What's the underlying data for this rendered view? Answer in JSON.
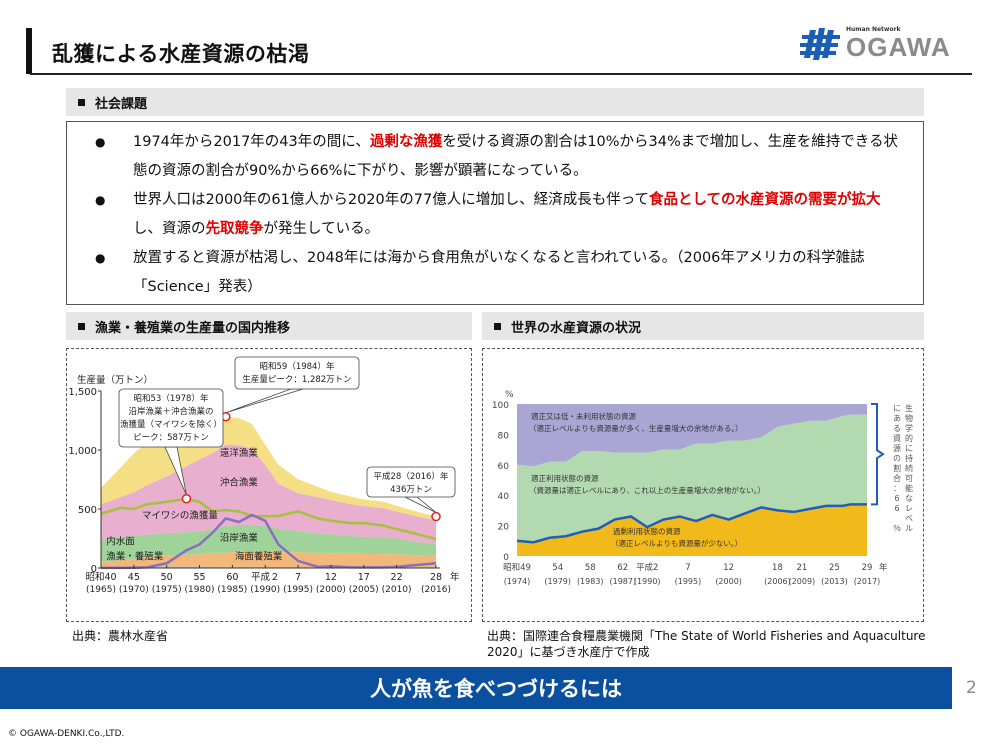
{
  "header": {
    "title": "乱獲による水産資源の枯渇",
    "logo_tagline": "Human Network",
    "logo_name": "OGAWA"
  },
  "social_issues": {
    "heading": "社会課題",
    "bullets": [
      {
        "parts": [
          {
            "text": "1974年から2017年の43年の間に、",
            "emphasis": false
          },
          {
            "text": "過剰な漁獲",
            "emphasis": true
          },
          {
            "text": "を受ける資源の割合は10%から34%まで増加し、生産を維持できる状態の資源の割合が90%から66%に下がり、影響が顕著になっている。",
            "emphasis": false
          }
        ]
      },
      {
        "parts": [
          {
            "text": "世界人口は2000年の61億人から2020年の77億人に増加し、経済成長も伴って",
            "emphasis": false
          },
          {
            "text": "食品としての水産資源の需要が拡大",
            "emphasis": true
          },
          {
            "text": "し、資源の",
            "emphasis": false
          },
          {
            "text": "先取競争",
            "emphasis": true
          },
          {
            "text": "が発生している。",
            "emphasis": false
          }
        ]
      },
      {
        "parts": [
          {
            "text": "放置すると資源が枯渇し、2048年には海から食用魚がいなくなると言われている。（2006年アメリカの科学雑誌「Science」発表）",
            "emphasis": false
          }
        ]
      }
    ],
    "bullet_symbol": "●",
    "emphasis_color": "#e00000"
  },
  "left_section": {
    "heading": "漁業・養殖業の生産量の国内推移",
    "source": "出典：農林水産省"
  },
  "right_section": {
    "heading": "世界の水産資源の状況",
    "source": "出典：国際連合食糧農業機関「The State of World Fisheries and Aquaculture 2020」に基づき水産庁で作成"
  },
  "chart_data": [
    {
      "type": "area",
      "title": "漁業・養殖業の生産量の国内推移",
      "ylabel": "生産量（万トン）",
      "xlabel": "年",
      "ylim": [
        0,
        1500
      ],
      "yticks": [
        "0",
        "500",
        "1,000",
        "1,500"
      ],
      "ytick_values": [
        0,
        500,
        1000,
        1500
      ],
      "xticks": [
        {
          "year": 1965,
          "label": "昭和40",
          "sub": "(1965)"
        },
        {
          "year": 1970,
          "label": "45",
          "sub": "(1970)"
        },
        {
          "year": 1975,
          "label": "50",
          "sub": "(1975)"
        },
        {
          "year": 1980,
          "label": "55",
          "sub": "(1980)"
        },
        {
          "year": 1985,
          "label": "60",
          "sub": "(1985)"
        },
        {
          "year": 1990,
          "label": "平成２",
          "sub": "(1990)"
        },
        {
          "year": 1995,
          "label": "7",
          "sub": "(1995)"
        },
        {
          "year": 2000,
          "label": "12",
          "sub": "(2000)"
        },
        {
          "year": 2005,
          "label": "17",
          "sub": "(2005)"
        },
        {
          "year": 2010,
          "label": "22",
          "sub": "(2010)"
        },
        {
          "year": 2016,
          "label": "28",
          "sub": "(2016)"
        }
      ],
      "x": [
        1965,
        1968,
        1970,
        1972,
        1975,
        1978,
        1980,
        1982,
        1984,
        1986,
        1988,
        1990,
        1992,
        1995,
        1998,
        2000,
        2003,
        2005,
        2008,
        2010,
        2013,
        2016
      ],
      "series": [
        {
          "name": "海面養殖業",
          "color": "#f2b87a",
          "values": [
            40,
            55,
            60,
            80,
            95,
            100,
            105,
            115,
            120,
            125,
            130,
            130,
            125,
            125,
            120,
            120,
            115,
            115,
            112,
            110,
            105,
            100
          ]
        },
        {
          "name": "内水面漁業・養殖業",
          "color": "#9fc6e0",
          "values": [
            10,
            12,
            12,
            12,
            12,
            12,
            12,
            11,
            11,
            10,
            10,
            10,
            9,
            8,
            7,
            6,
            6,
            5,
            5,
            5,
            4,
            4
          ]
        },
        {
          "name": "沿岸漁業",
          "color": "#9fd39a",
          "values": [
            190,
            195,
            200,
            190,
            190,
            190,
            195,
            200,
            225,
            225,
            220,
            215,
            200,
            180,
            165,
            160,
            150,
            145,
            140,
            135,
            110,
            100
          ]
        },
        {
          "name": "沖合漁業",
          "color": "#e8afce",
          "values": [
            300,
            340,
            370,
            420,
            480,
            560,
            610,
            650,
            690,
            680,
            650,
            520,
            380,
            320,
            310,
            290,
            270,
            260,
            250,
            230,
            220,
            200
          ]
        },
        {
          "name": "遠洋漁業",
          "color": "#f5df85",
          "values": [
            140,
            250,
            330,
            360,
            350,
            250,
            210,
            190,
            236,
            230,
            210,
            170,
            160,
            120,
            85,
            70,
            65,
            55,
            55,
            48,
            40,
            32
          ]
        }
      ],
      "lines": [
        {
          "name": "沿岸漁業＋沖合漁業の漁獲量（マイワシを除く）",
          "color": "#a7c13a",
          "values": [
            460,
            510,
            500,
            540,
            560,
            587,
            560,
            480,
            490,
            480,
            440,
            440,
            440,
            480,
            420,
            400,
            380,
            380,
            360,
            330,
            290,
            245
          ]
        },
        {
          "name": "マイワシの漁獲量",
          "color": "#8a6fc0",
          "values": [
            1,
            1,
            2,
            5,
            40,
            150,
            200,
            300,
            420,
            390,
            450,
            400,
            200,
            60,
            10,
            15,
            5,
            5,
            5,
            10,
            25,
            40
          ]
        }
      ],
      "series_labels": [
        {
          "series": "遠洋漁業",
          "text": "遠洋漁業"
        },
        {
          "series": "沖合漁業",
          "text": "沖合漁業"
        },
        {
          "series": "沿岸漁業",
          "text": "沿岸漁業"
        },
        {
          "series": "海面養殖業",
          "text": "海面養殖業"
        },
        {
          "series": "内水面漁業・養殖業",
          "text": "内水面\n漁業・養殖業"
        },
        {
          "series": "マイワシの漁獲量",
          "text": "マイワシの漁獲量"
        }
      ],
      "annotations": [
        {
          "year": 1984,
          "value": 1282,
          "lines": [
            "昭和59（1984）年",
            "生産量ピーク：1,282万トン"
          ]
        },
        {
          "year": 1978,
          "value": 587,
          "lines": [
            "昭和53（1978）年",
            "沿岸漁業＋沖合漁業の",
            "漁獲量（マイワシを除く）",
            "ピーク：587万トン"
          ]
        },
        {
          "year": 2016,
          "value": 436,
          "lines": [
            "平成28（2016）年",
            "436万トン"
          ]
        }
      ],
      "marker_color": "#e02020"
    },
    {
      "type": "area",
      "title": "世界の水産資源の状況",
      "ylabel": "%",
      "xlabel": "年",
      "ylim": [
        0,
        100
      ],
      "yticks": [
        "0",
        "20",
        "40",
        "60",
        "80",
        "100"
      ],
      "ytick_values": [
        0,
        20,
        40,
        60,
        80,
        100
      ],
      "xticks": [
        {
          "year": 1974,
          "label": "昭和49",
          "sub": "(1974)"
        },
        {
          "year": 1979,
          "label": "54",
          "sub": "(1979)"
        },
        {
          "year": 1983,
          "label": "58",
          "sub": "(1983)"
        },
        {
          "year": 1987,
          "label": "62",
          "sub": "(1987)"
        },
        {
          "year": 1990,
          "label": "平成2",
          "sub": "(1990)"
        },
        {
          "year": 1995,
          "label": "7",
          "sub": "(1995)"
        },
        {
          "year": 2000,
          "label": "12",
          "sub": "(2000)"
        },
        {
          "year": 2006,
          "label": "18",
          "sub": "(2006)"
        },
        {
          "year": 2009,
          "label": "21",
          "sub": "(2009)"
        },
        {
          "year": 2013,
          "label": "25",
          "sub": "(2013)"
        },
        {
          "year": 2017,
          "label": "29",
          "sub": "(2017)"
        }
      ],
      "x": [
        1974,
        1976,
        1978,
        1980,
        1982,
        1984,
        1986,
        1988,
        1990,
        1992,
        1994,
        1996,
        1998,
        2000,
        2002,
        2004,
        2006,
        2008,
        2010,
        2012,
        2014,
        2015,
        2017
      ],
      "series": [
        {
          "name": "過剰利用状態の資源",
          "note": "（適正レベルよりも資源量が少ない。）",
          "color": "#f2b91a",
          "values": [
            10,
            9,
            12,
            13,
            16,
            18,
            24,
            26,
            19,
            24,
            26,
            23,
            27,
            24,
            28,
            32,
            30,
            29,
            31,
            33,
            33,
            34,
            34
          ]
        },
        {
          "name": "適正利用状態の資源",
          "note": "（資源量は適正レベルにあり、これ以上の生産量増大の余地がない。）",
          "color": "#b3d9b0",
          "values": [
            50,
            50,
            50,
            49,
            53,
            51,
            44,
            42,
            49,
            46,
            44,
            51,
            47,
            52,
            48,
            46,
            55,
            58,
            58,
            56,
            59,
            59,
            59
          ]
        },
        {
          "name": "適正又は低・未利用状態の資源",
          "note": "（適正レベルよりも資源量が多く、生産量増大の余地がある。）",
          "color": "#aaa6d4",
          "values": [
            40,
            41,
            38,
            38,
            31,
            31,
            32,
            32,
            32,
            30,
            30,
            26,
            26,
            24,
            24,
            22,
            15,
            13,
            11,
            11,
            8,
            7,
            7
          ]
        }
      ],
      "line": {
        "name": "過剰利用状態の資源の割合",
        "color": "#1f5fb5"
      },
      "bracket_label": "生物学的に持続可能なレベルにある資源の割合：66 ％"
    }
  ],
  "footer": {
    "banner": "人が魚を食べつづけるには",
    "page_number": "2",
    "copyright": "© OGAWA-DENKI.Co.,LTD."
  }
}
